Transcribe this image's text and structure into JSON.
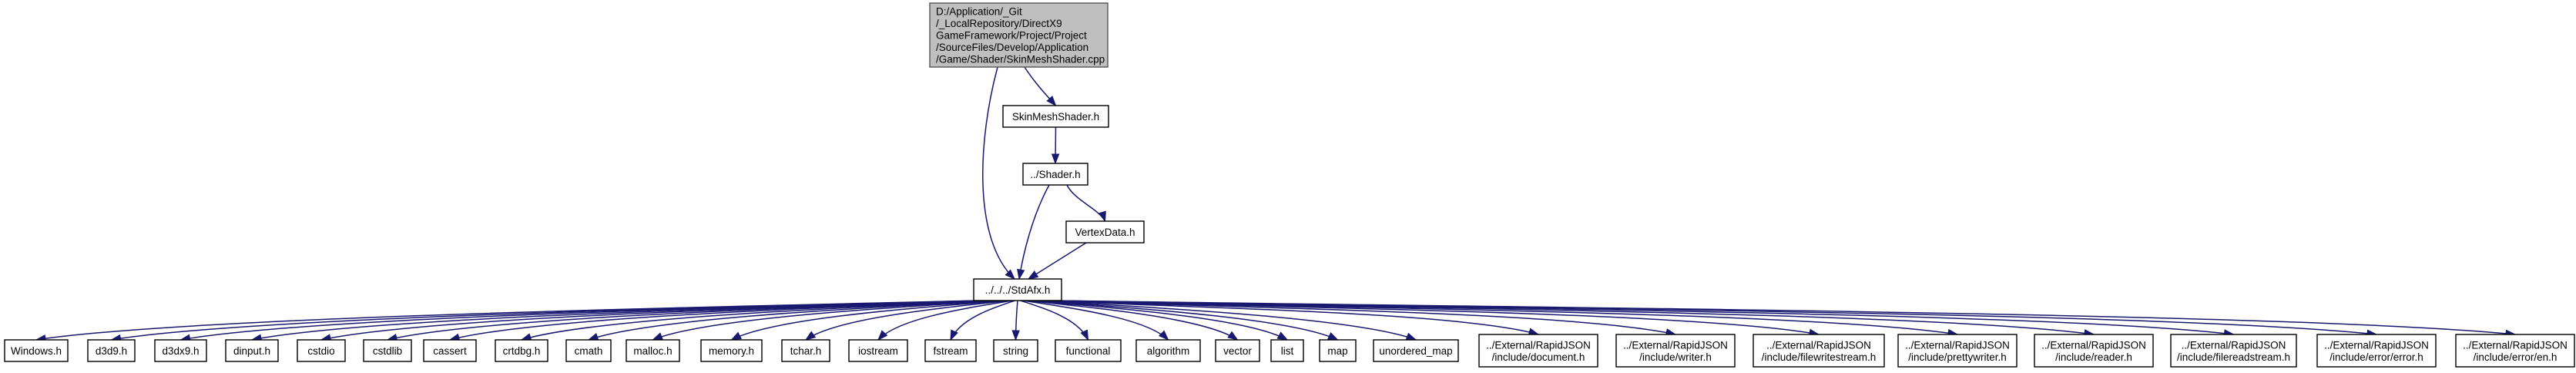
{
  "graph": {
    "root": {
      "lines": [
        "D:/Application/_Git",
        "/_LocalRepository/DirectX9",
        "GameFramework/Project/Project",
        "/SourceFiles/Develop/Application",
        "/Game/Shader/SkinMeshShader.cpp"
      ]
    },
    "nodes": {
      "skinmeshshader_h": [
        "SkinMeshShader.h"
      ],
      "shader_h": [
        "../Shader.h"
      ],
      "vertexdata_h": [
        "VertexData.h"
      ],
      "stdafx_h": [
        "../../../StdAfx.h"
      ],
      "windows_h": [
        "Windows.h"
      ],
      "d3d9_h": [
        "d3d9.h"
      ],
      "d3dx9_h": [
        "d3dx9.h"
      ],
      "dinput_h": [
        "dinput.h"
      ],
      "cstdio": [
        "cstdio"
      ],
      "cstdlib": [
        "cstdlib"
      ],
      "cassert": [
        "cassert"
      ],
      "crtdbg_h": [
        "crtdbg.h"
      ],
      "cmath": [
        "cmath"
      ],
      "malloc_h": [
        "malloc.h"
      ],
      "memory_h": [
        "memory.h"
      ],
      "tchar_h": [
        "tchar.h"
      ],
      "iostream": [
        "iostream"
      ],
      "fstream": [
        "fstream"
      ],
      "string": [
        "string"
      ],
      "functional": [
        "functional"
      ],
      "algorithm": [
        "algorithm"
      ],
      "vector": [
        "vector"
      ],
      "list": [
        "list"
      ],
      "map": [
        "map"
      ],
      "unordered_map": [
        "unordered_map"
      ],
      "rj_document": [
        "../External/RapidJSON",
        "/include/document.h"
      ],
      "rj_writer": [
        "../External/RapidJSON",
        "/include/writer.h"
      ],
      "rj_filewritestream": [
        "../External/RapidJSON",
        "/include/filewritestream.h"
      ],
      "rj_prettywriter": [
        "../External/RapidJSON",
        "/include/prettywriter.h"
      ],
      "rj_reader": [
        "../External/RapidJSON",
        "/include/reader.h"
      ],
      "rj_filereadstream": [
        "../External/RapidJSON",
        "/include/filereadstream.h"
      ],
      "rj_error": [
        "../External/RapidJSON",
        "/include/error/error.h"
      ],
      "rj_error_en": [
        "../External/RapidJSON",
        "/include/error/en.h"
      ]
    },
    "colors": {
      "edge": "#191970",
      "root_fill": "#bfbfbf",
      "node_fill": "#ffffff",
      "node_border": "#000000"
    }
  }
}
